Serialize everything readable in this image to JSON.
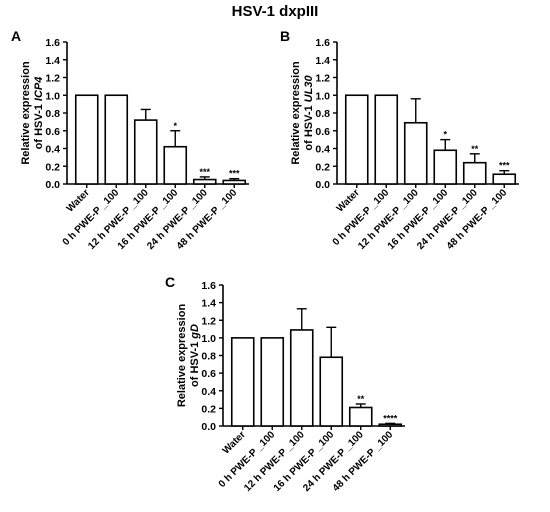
{
  "figure_title": "HSV-1 dxpIII",
  "chart_data": [
    {
      "panel": "A",
      "type": "bar",
      "ylabel_line1": "Relative expression",
      "ylabel_prefix": "of HSV-1 ",
      "ylabel_gene": "ICP4",
      "categories": [
        "Water",
        "0 h PWE-P _100",
        "12 h PWE-P _100",
        "16 h PWE-P _100",
        "24 h PWE-P _100",
        "48 h PWE-P _100"
      ],
      "values": [
        1.0,
        1.0,
        0.72,
        0.42,
        0.05,
        0.04
      ],
      "errors": [
        0,
        0,
        0.12,
        0.18,
        0.03,
        0.02
      ],
      "significance": [
        "",
        "",
        "",
        "*",
        "***",
        "***"
      ],
      "ylim": [
        0,
        1.6
      ],
      "yticks": [
        "0.0",
        "0.2",
        "0.4",
        "0.6",
        "0.8",
        "1.0",
        "1.2",
        "1.4",
        "1.6"
      ]
    },
    {
      "panel": "B",
      "type": "bar",
      "ylabel_line1": "Relative expression",
      "ylabel_prefix": "of HSV-1 ",
      "ylabel_gene": "UL30",
      "categories": [
        "Water",
        "0 h PWE-P _100",
        "12 h PWE-P _100",
        "16 h PWE-P _100",
        "24 h PWE-P _100",
        "48 h PWE-P _100"
      ],
      "values": [
        1.0,
        1.0,
        0.69,
        0.38,
        0.24,
        0.11
      ],
      "errors": [
        0,
        0,
        0.27,
        0.12,
        0.1,
        0.04
      ],
      "significance": [
        "",
        "",
        "",
        "*",
        "**",
        "***"
      ],
      "ylim": [
        0,
        1.6
      ],
      "yticks": [
        "0.0",
        "0.2",
        "0.4",
        "0.6",
        "0.8",
        "1.0",
        "1.2",
        "1.4",
        "1.6"
      ]
    },
    {
      "panel": "C",
      "type": "bar",
      "ylabel_line1": "Relative expression",
      "ylabel_prefix": "of HSV-1 ",
      "ylabel_gene": "gD",
      "categories": [
        "Water",
        "0 h PWE-P _100",
        "12 h PWE-P _100",
        "16 h PWE-P _100",
        "24 h PWE-P _100",
        "48 h PWE-P _100"
      ],
      "values": [
        1.0,
        1.0,
        1.09,
        0.78,
        0.21,
        0.02
      ],
      "errors": [
        0,
        0,
        0.24,
        0.34,
        0.04,
        0.01
      ],
      "significance": [
        "",
        "",
        "",
        "",
        "**",
        "****"
      ],
      "ylim": [
        0,
        1.6
      ],
      "yticks": [
        "0.0",
        "0.2",
        "0.4",
        "0.6",
        "0.8",
        "1.0",
        "1.2",
        "1.4",
        "1.6"
      ]
    }
  ]
}
